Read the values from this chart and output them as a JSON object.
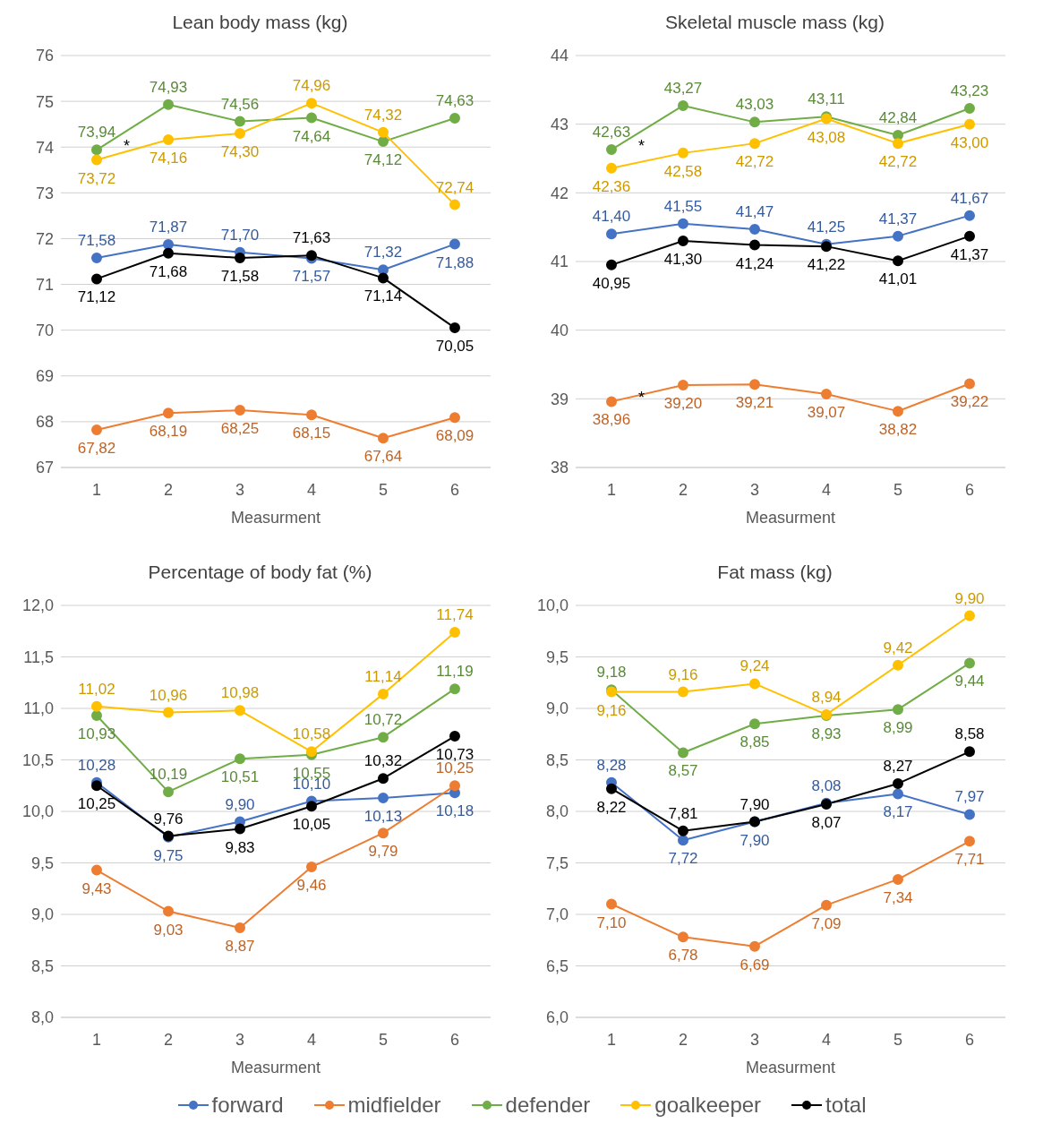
{
  "chart_data": [
    {
      "type": "line",
      "title": "Lean body mass (kg)",
      "xlabel": "Measurment",
      "categories": [
        "1",
        "2",
        "3",
        "4",
        "5",
        "6"
      ],
      "ylim": [
        67,
        76
      ],
      "yticks": [
        67,
        68,
        69,
        70,
        71,
        72,
        73,
        74,
        75,
        76
      ],
      "grid": "y",
      "marker": "circle",
      "line_style": "solid",
      "series": [
        {
          "color": "#4472c4",
          "values": [
            71.58,
            71.87,
            71.7,
            71.57,
            71.32,
            71.88
          ],
          "value_labels": [
            "71,58",
            "71,87",
            "71,70",
            "71,57",
            "71,32",
            "71,88"
          ]
        },
        {
          "color": "#ed7d31",
          "values": [
            67.82,
            68.19,
            68.25,
            68.15,
            67.64,
            68.09
          ],
          "value_labels": [
            "67,82",
            "68,19",
            "68,25",
            "68,15",
            "67,64",
            "68,09"
          ]
        },
        {
          "color": "#70ad47",
          "values": [
            73.94,
            74.93,
            74.56,
            74.64,
            74.12,
            74.63
          ],
          "value_labels": [
            "73,94",
            "74,93",
            "74,56",
            "74,64",
            "74,12",
            "74,63"
          ]
        },
        {
          "color": "#ffc000",
          "values": [
            73.72,
            74.16,
            74.3,
            74.96,
            74.32,
            72.74
          ],
          "value_labels": [
            "73,72",
            "74,16",
            "74,30",
            "74,96",
            "74,32",
            "72,74"
          ]
        },
        {
          "color": "#000000",
          "values": [
            71.12,
            71.68,
            71.58,
            71.63,
            71.14,
            70.05
          ],
          "value_labels": [
            "71,12",
            "71,68",
            "71,58",
            "71,63",
            "71,14",
            "70,05"
          ]
        }
      ],
      "annotations": [
        {
          "text": "*",
          "x": "1",
          "y": 73.94
        }
      ]
    },
    {
      "type": "line",
      "title": "Skeletal muscle mass (kg)",
      "xlabel": "Measurment",
      "categories": [
        "1",
        "2",
        "3",
        "4",
        "5",
        "6"
      ],
      "ylim": [
        38,
        44
      ],
      "yticks": [
        38,
        39,
        40,
        41,
        42,
        43,
        44
      ],
      "grid": "y",
      "marker": "circle",
      "line_style": "solid",
      "series": [
        {
          "color": "#4472c4",
          "values": [
            41.4,
            41.55,
            41.47,
            41.25,
            41.37,
            41.67
          ],
          "value_labels": [
            "41,40",
            "41,55",
            "41,47",
            "41,25",
            "41,37",
            "41,67"
          ]
        },
        {
          "color": "#ed7d31",
          "values": [
            38.96,
            39.2,
            39.21,
            39.07,
            38.82,
            39.22
          ],
          "value_labels": [
            "38,96",
            "39,20",
            "39,21",
            "39,07",
            "38,82",
            "39,22"
          ]
        },
        {
          "color": "#70ad47",
          "values": [
            42.63,
            43.27,
            43.03,
            43.11,
            42.84,
            43.23
          ],
          "value_labels": [
            "42,63",
            "43,27",
            "43,03",
            "43,11",
            "42,84",
            "43,23"
          ]
        },
        {
          "color": "#ffc000",
          "values": [
            42.36,
            42.58,
            42.72,
            43.08,
            42.72,
            43.0
          ],
          "value_labels": [
            "42,36",
            "42,58",
            "42,72",
            "43,08",
            "42,72",
            "43,00"
          ]
        },
        {
          "color": "#000000",
          "values": [
            40.95,
            41.3,
            41.24,
            41.22,
            41.01,
            41.37
          ],
          "value_labels": [
            "40,95",
            "41,30",
            "41,24",
            "41,22",
            "41,01",
            "41,37"
          ]
        }
      ],
      "annotations": [
        {
          "text": "*",
          "x": "1",
          "y": 42.63
        },
        {
          "text": "*",
          "x": "1",
          "y": 38.96
        }
      ]
    },
    {
      "type": "line",
      "title": "Percentage of body fat (%)",
      "xlabel": "Measurment",
      "categories": [
        "1",
        "2",
        "3",
        "4",
        "5",
        "6"
      ],
      "ylim": [
        8,
        12
      ],
      "yticks": [
        {
          "value": 8,
          "label": "8,0"
        },
        {
          "value": 8.5,
          "label": "8,5"
        },
        {
          "value": 9,
          "label": "9,0"
        },
        {
          "value": 9.5,
          "label": "9,5"
        },
        {
          "value": 10,
          "label": "10,0"
        },
        {
          "value": 10.5,
          "label": "10,5"
        },
        {
          "value": 11,
          "label": "11,0"
        },
        {
          "value": 11.5,
          "label": "11,5"
        },
        {
          "value": 12,
          "label": "12,0"
        }
      ],
      "grid": "y",
      "marker": "circle",
      "line_style": "solid",
      "series": [
        {
          "color": "#4472c4",
          "values": [
            10.28,
            9.75,
            9.9,
            10.1,
            10.13,
            10.18
          ],
          "value_labels": [
            "10,28",
            "9,75",
            "9,90",
            "10,10",
            "10,13",
            "10,18"
          ]
        },
        {
          "color": "#ed7d31",
          "values": [
            9.43,
            9.03,
            8.87,
            9.46,
            9.79,
            10.25
          ],
          "value_labels": [
            "9,43",
            "9,03",
            "8,87",
            "9,46",
            "9,79",
            "10,25"
          ]
        },
        {
          "color": "#70ad47",
          "values": [
            10.93,
            10.19,
            10.51,
            10.55,
            10.72,
            11.19
          ],
          "value_labels": [
            "10,93",
            "10,19",
            "10,51",
            "10,55",
            "10,72",
            "11,19"
          ]
        },
        {
          "color": "#ffc000",
          "values": [
            11.02,
            10.96,
            10.98,
            10.58,
            11.14,
            11.74
          ],
          "value_labels": [
            "11,02",
            "10,96",
            "10,98",
            "10,58",
            "11,14",
            "11,74"
          ]
        },
        {
          "color": "#000000",
          "values": [
            10.25,
            9.76,
            9.83,
            10.05,
            10.32,
            10.73
          ],
          "value_labels": [
            "10,25",
            "9,76",
            "9,83",
            "10,05",
            "10,32",
            "10,73"
          ]
        }
      ]
    },
    {
      "type": "line",
      "title": "Fat mass (kg)",
      "xlabel": "Measurment",
      "categories": [
        "1",
        "2",
        "3",
        "4",
        "5",
        "6"
      ],
      "ylim": [
        6,
        10
      ],
      "yticks": [
        {
          "value": 6,
          "label": "6,0"
        },
        {
          "value": 6.5,
          "label": "6,5"
        },
        {
          "value": 7,
          "label": "7,0"
        },
        {
          "value": 7.5,
          "label": "7,5"
        },
        {
          "value": 8,
          "label": "8,0"
        },
        {
          "value": 8.5,
          "label": "8,5"
        },
        {
          "value": 9,
          "label": "9,0"
        },
        {
          "value": 9.5,
          "label": "9,5"
        },
        {
          "value": 10,
          "label": "10,0"
        }
      ],
      "grid": "y",
      "legend": "bottom",
      "marker": "circle",
      "line_style": "solid",
      "series": [
        {
          "name": "forward",
          "color": "#4472c4",
          "values": [
            8.28,
            7.72,
            7.9,
            8.08,
            8.17,
            7.97
          ],
          "value_labels": [
            "8,28",
            "7,72",
            "7,90",
            "8,08",
            "8,17",
            "7,97"
          ]
        },
        {
          "name": "midfielder",
          "color": "#ed7d31",
          "values": [
            7.1,
            6.78,
            6.69,
            7.09,
            7.34,
            7.71
          ],
          "value_labels": [
            "7,10",
            "6,78",
            "6,69",
            "7,09",
            "7,34",
            "7,71"
          ]
        },
        {
          "name": "defender",
          "color": "#70ad47",
          "values": [
            9.18,
            8.57,
            8.85,
            8.93,
            8.99,
            9.44
          ],
          "value_labels": [
            "9,18",
            "8,57",
            "8,85",
            "8,93",
            "8,99",
            "9,44"
          ]
        },
        {
          "name": "goalkeeper",
          "color": "#ffc000",
          "values": [
            9.16,
            9.16,
            9.24,
            8.94,
            9.42,
            9.9
          ],
          "value_labels": [
            "9,16",
            "9,16",
            "9,24",
            "8,94",
            "9,42",
            "9,90"
          ]
        },
        {
          "name": "total",
          "color": "#000000",
          "values": [
            8.22,
            7.81,
            7.9,
            8.07,
            8.27,
            8.58
          ],
          "value_labels": [
            "8,22",
            "7,81",
            "7,90",
            "8,07",
            "8,27",
            "8,58"
          ]
        }
      ]
    }
  ]
}
